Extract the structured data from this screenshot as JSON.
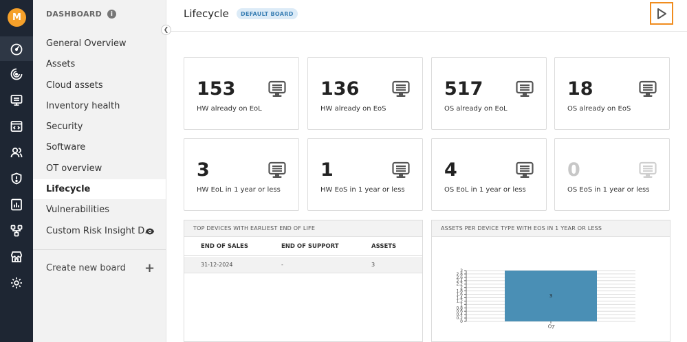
{
  "user": {
    "initial": "M"
  },
  "colors": {
    "accent": "#f08c1e",
    "bar": "#4a8fb5",
    "rail": "#1e2633",
    "avatar": "#f5a02a"
  },
  "rail_icons": [
    "dashboard-icon",
    "analytics-icon",
    "monitor-icon",
    "code-icon",
    "users-icon",
    "shield-icon",
    "report-icon",
    "network-icon",
    "store-icon",
    "settings-icon"
  ],
  "sidebar": {
    "header": "DASHBOARD",
    "items": [
      {
        "label": "General Overview"
      },
      {
        "label": "Assets"
      },
      {
        "label": "Cloud assets"
      },
      {
        "label": "Inventory health"
      },
      {
        "label": "Security"
      },
      {
        "label": "Software"
      },
      {
        "label": "OT overview"
      },
      {
        "label": "Lifecycle"
      },
      {
        "label": "Vulnerabilities"
      },
      {
        "label": "Custom Risk Insight D..."
      }
    ],
    "create_label": "Create new board"
  },
  "header": {
    "title": "Lifecycle",
    "badge": "DEFAULT BOARD"
  },
  "cards": [
    {
      "value": "153",
      "label": "HW already on EoL"
    },
    {
      "value": "136",
      "label": "HW already on EoS"
    },
    {
      "value": "517",
      "label": "OS already on EoL"
    },
    {
      "value": "18",
      "label": "OS already on EoS"
    },
    {
      "value": "3",
      "label": "HW EoL in 1 year or less"
    },
    {
      "value": "1",
      "label": "HW EoS in 1 year or less"
    },
    {
      "value": "4",
      "label": "OS EoL in 1 year or less"
    },
    {
      "value": "0",
      "label": "OS EoS in 1 year or less"
    }
  ],
  "devices_table": {
    "title": "TOP DEVICES WITH EARLIEST END OF LIFE",
    "columns": [
      "END OF SALES",
      "END OF SUPPORT",
      "ASSETS"
    ],
    "rows": [
      [
        "31-12-2024",
        "-",
        "3"
      ]
    ]
  },
  "chart_data": {
    "type": "bar",
    "title": "ASSETS PER DEVICE TYPE WITH EOS IN 1 YEAR OR LESS",
    "categories": [
      "OT"
    ],
    "values": [
      3
    ],
    "data_labels": [
      "3"
    ],
    "ylim": [
      0,
      3
    ],
    "y_ticks": [
      "0",
      "0.2",
      "0.4",
      "0.6",
      "0.8",
      "1",
      "1.2",
      "1.4",
      "1.6",
      "1.8",
      "2",
      "2.2",
      "2.4",
      "2.6",
      "2.8",
      "3"
    ],
    "grid": true
  }
}
